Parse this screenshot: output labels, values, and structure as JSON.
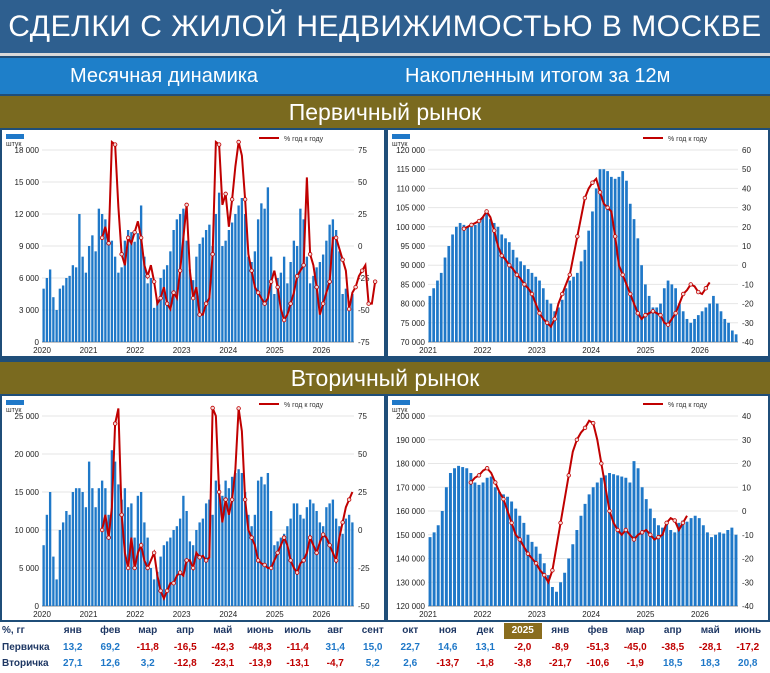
{
  "header": {
    "title": "СДЕЛКИ С ЖИЛОЙ НЕДВИЖИМОСТЬЮ В МОСКВЕ",
    "left_caption": "Месячная динамика",
    "right_caption": "Накопленным итогом за 12м"
  },
  "sections": {
    "primary": "Первичный рынок",
    "secondary": "Вторичный рынок"
  },
  "colors": {
    "bar": "#1f78c8",
    "line": "#c00000",
    "marker_fill": "#f2dcdb"
  },
  "chart_data": [
    {
      "id": "primary-monthly",
      "type": "bar+line",
      "legend": {
        "bars": "штук",
        "line": "% год к году"
      },
      "x_labels": [
        "2020",
        "2021",
        "2022",
        "2023",
        "2024",
        "2025",
        "2026"
      ],
      "ylim_left": [
        0,
        18000
      ],
      "yticks_left": [
        "0",
        "3 000",
        "6 000",
        "9 000",
        "12 000",
        "15 000",
        "18 000"
      ],
      "ylim_right": [
        -75,
        100
      ],
      "yticks_right": [
        "-75",
        "-50",
        "-25",
        "0",
        "25",
        "50",
        "75"
      ],
      "bars": [
        5000,
        6000,
        6800,
        4200,
        3000,
        5000,
        5300,
        6000,
        6200,
        7200,
        7000,
        12000,
        8000,
        6500,
        9000,
        10000,
        8500,
        12500,
        12000,
        11500,
        10000,
        9500,
        8000,
        6500,
        7000,
        9500,
        10500,
        10300,
        9400,
        10200,
        12800,
        8000,
        5500,
        6000,
        3200,
        4000,
        6000,
        6800,
        7200,
        8500,
        10500,
        11500,
        12000,
        12500,
        9500,
        6800,
        5800,
        8000,
        9200,
        9800,
        10500,
        11000,
        9000,
        12000,
        14000,
        9000,
        9500,
        10500,
        11200,
        12000,
        12800,
        13500,
        12000,
        8000,
        7500,
        8500,
        11500,
        13000,
        12500,
        14500,
        8000,
        4500,
        6000,
        6500,
        8000,
        5500,
        7500,
        9500,
        9000,
        12500,
        11500,
        8000,
        5500,
        6200,
        7000,
        7500,
        8200,
        9500,
        11000,
        11500,
        10500,
        8500,
        4500,
        5000,
        3800,
        4500
      ],
      "line": [
        null,
        null,
        null,
        null,
        null,
        null,
        null,
        null,
        null,
        null,
        null,
        null,
        null,
        null,
        null,
        null,
        null,
        null,
        20,
        30,
        15,
        120,
        105,
        48,
        5,
        -5,
        20,
        15,
        25,
        35,
        20,
        -5,
        -15,
        -5,
        -20,
        -40,
        -35,
        -25,
        -40,
        -45,
        -30,
        -35,
        -10,
        20,
        50,
        -10,
        -35,
        -25,
        -50,
        -50,
        -40,
        -35,
        5,
        125,
        105,
        50,
        60,
        30,
        55,
        85,
        120,
        95,
        55,
        5,
        -10,
        -25,
        -30,
        -35,
        -40,
        -35,
        -20,
        -10,
        -25,
        -45,
        -55,
        -50,
        -40,
        -30,
        -15,
        -10,
        -5,
        75,
        5,
        -5,
        -25,
        -50,
        -40,
        -30,
        -20,
        20,
        20,
        10,
        0,
        -10,
        -45,
        -30,
        -25,
        -15,
        -10,
        -5,
        -40,
        -40,
        -20
      ]
    },
    {
      "id": "primary-cumulative",
      "type": "bar+line",
      "legend": {
        "bars": "штук",
        "line": "% год к году"
      },
      "x_labels": [
        "2021",
        "2022",
        "2023",
        "2024",
        "2025",
        "2026"
      ],
      "ylim_left": [
        70000,
        120000
      ],
      "yticks_left": [
        "70 000",
        "75 000",
        "80 000",
        "85 000",
        "90 000",
        "95 000",
        "100 000",
        "105 000",
        "110 000",
        "115 000",
        "120 000"
      ],
      "ylim_right": [
        -40,
        60
      ],
      "yticks_right": [
        "-40",
        "-30",
        "-20",
        "-10",
        "0",
        "10",
        "20",
        "30",
        "40",
        "50",
        "60"
      ],
      "bars": [
        82000,
        84000,
        86000,
        88000,
        92000,
        95000,
        98000,
        100000,
        101000,
        100500,
        100000,
        100000,
        100500,
        101500,
        102500,
        104000,
        102000,
        101000,
        100000,
        98000,
        97000,
        96000,
        94000,
        92000,
        91000,
        90000,
        89000,
        88000,
        87000,
        86000,
        84000,
        81000,
        80000,
        78000,
        79000,
        81000,
        84000,
        86000,
        87000,
        88000,
        91000,
        94000,
        99000,
        104000,
        110000,
        115000,
        115000,
        114500,
        113000,
        112500,
        113000,
        114500,
        112000,
        106000,
        102000,
        97000,
        90000,
        85000,
        82000,
        79000,
        79000,
        80000,
        84000,
        86000,
        85000,
        84000,
        80000,
        78000,
        76000,
        75000,
        76000,
        77000,
        78000,
        79000,
        80000,
        82000,
        80000,
        78000,
        76000,
        75000,
        73000,
        72000
      ],
      "line": [
        null,
        null,
        null,
        null,
        null,
        null,
        null,
        null,
        null,
        19,
        20,
        21,
        22,
        23,
        25,
        28,
        25,
        18,
        10,
        5,
        3,
        0,
        -2,
        -5,
        -7,
        -10,
        -12,
        -15,
        -20,
        -25,
        -28,
        -30,
        -32,
        -28,
        -20,
        -15,
        -10,
        -5,
        5,
        15,
        25,
        35,
        40,
        43,
        45,
        38,
        32,
        30,
        28,
        15,
        0,
        -5,
        -10,
        -15,
        -20,
        -25,
        -28,
        -26,
        -25,
        -24,
        -25,
        -26,
        -30,
        -31,
        -28,
        -25,
        -20,
        -15,
        -13,
        -10,
        -11,
        -14,
        -15,
        -12,
        -9
      ]
    },
    {
      "id": "secondary-monthly",
      "type": "bar+line",
      "legend": {
        "bars": "штук",
        "line": "% год к году"
      },
      "x_labels": [
        "2020",
        "2021",
        "2022",
        "2023",
        "2024",
        "2025",
        "2026"
      ],
      "ylim_left": [
        0,
        25000
      ],
      "yticks_left": [
        "0",
        "5 000",
        "10 000",
        "15 000",
        "20 000",
        "25 000"
      ],
      "ylim_right": [
        -50,
        75
      ],
      "yticks_right": [
        "-50",
        "-25",
        "0",
        "25",
        "50",
        "75"
      ],
      "bars": [
        8000,
        12000,
        15000,
        6500,
        3500,
        10000,
        11000,
        12500,
        12000,
        15000,
        15500,
        15500,
        15000,
        13000,
        19000,
        15500,
        13000,
        15500,
        16500,
        15500,
        12000,
        20500,
        19000,
        16000,
        14000,
        15500,
        13000,
        13500,
        9000,
        14500,
        15000,
        11000,
        9000,
        5000,
        3500,
        4500,
        6500,
        8000,
        8500,
        9000,
        10000,
        10500,
        11500,
        14500,
        12500,
        8500,
        8000,
        10000,
        11000,
        11500,
        13500,
        14000,
        12000,
        16500,
        16000,
        14500,
        16500,
        15500,
        17000,
        17500,
        18000,
        17500,
        15000,
        12000,
        10500,
        12000,
        16500,
        17000,
        16000,
        17500,
        12500,
        8000,
        8500,
        9000,
        9500,
        10500,
        11500,
        13500,
        13500,
        12000,
        11500,
        13000,
        14000,
        13500,
        12500,
        11000,
        10500,
        13000,
        13500,
        14000,
        11500,
        10500,
        9500,
        11500,
        12000,
        11000
      ],
      "line": [
        null,
        null,
        null,
        null,
        null,
        null,
        null,
        null,
        null,
        null,
        null,
        null,
        null,
        null,
        null,
        null,
        null,
        null,
        0,
        10,
        -5,
        15,
        70,
        80,
        10,
        -15,
        -25,
        -5,
        -25,
        -15,
        -10,
        -20,
        -25,
        -20,
        -15,
        -30,
        -40,
        -45,
        -40,
        -35,
        -35,
        -30,
        -28,
        -30,
        -20,
        -20,
        -25,
        -15,
        -18,
        -17,
        -20,
        -18,
        120,
        75,
        25,
        5,
        20,
        10,
        20,
        40,
        80,
        65,
        20,
        0,
        -5,
        -10,
        -20,
        -22,
        -23,
        -25,
        -25,
        -20,
        -15,
        -10,
        -5,
        -10,
        -20,
        -25,
        -28,
        -22,
        -20,
        -15,
        -5,
        -10,
        -15,
        -8,
        -3,
        -5,
        -10,
        -15,
        -20,
        -5,
        5,
        15,
        20,
        25
      ]
    },
    {
      "id": "secondary-cumulative",
      "type": "bar+line",
      "legend": {
        "bars": "штук",
        "line": "% год к году"
      },
      "x_labels": [
        "2021",
        "2022",
        "2023",
        "2024",
        "2025",
        "2026"
      ],
      "ylim_left": [
        120000,
        200000
      ],
      "yticks_left": [
        "120 000",
        "130 000",
        "140 000",
        "150 000",
        "160 000",
        "170 000",
        "180 000",
        "190 000",
        "200 000"
      ],
      "ylim_right": [
        -40,
        40
      ],
      "yticks_right": [
        "-40",
        "-30",
        "-20",
        "-10",
        "0",
        "10",
        "20",
        "30",
        "40"
      ],
      "bars": [
        149000,
        151000,
        154000,
        160000,
        170000,
        176000,
        178000,
        179000,
        178500,
        178000,
        176000,
        172000,
        171000,
        172000,
        174000,
        174500,
        170000,
        168000,
        167000,
        166000,
        164000,
        161000,
        158000,
        155000,
        150000,
        147000,
        145000,
        142000,
        138000,
        133000,
        128000,
        126000,
        130000,
        134000,
        140000,
        146000,
        152000,
        158000,
        163000,
        167000,
        170000,
        172000,
        174000,
        175000,
        176000,
        175500,
        175000,
        174500,
        174000,
        172000,
        181000,
        178000,
        170000,
        165000,
        161000,
        157000,
        154000,
        153000,
        155000,
        152000,
        151000,
        155000,
        156000,
        155500,
        157000,
        158000,
        157000,
        154000,
        151000,
        149000,
        150000,
        151000,
        150500,
        152000,
        153000,
        150000
      ],
      "line": [
        null,
        null,
        null,
        null,
        null,
        null,
        null,
        null,
        null,
        null,
        12,
        14,
        15,
        17,
        18,
        16,
        12,
        8,
        5,
        0,
        -5,
        -10,
        -12,
        -15,
        -18,
        -20,
        -22,
        -25,
        -27,
        -30,
        -25,
        -15,
        -5,
        5,
        15,
        25,
        30,
        33,
        35,
        38,
        37,
        30,
        20,
        10,
        0,
        -5,
        -8,
        -10,
        -8,
        -10,
        -12,
        -10,
        -9,
        -8,
        -10,
        -12,
        -11,
        -10,
        -5,
        -3,
        -4,
        -8,
        -5,
        -2
      ]
    }
  ],
  "table": {
    "headers": [
      "%, гг",
      "янв",
      "фев",
      "мар",
      "апр",
      "май",
      "июнь",
      "июль",
      "авг",
      "сент",
      "окт",
      "ноя",
      "дек",
      "2025",
      "янв",
      "фев",
      "мар",
      "апр",
      "май",
      "июнь"
    ],
    "rows": [
      {
        "label": "Первичка",
        "values": [
          "13,2",
          "69,2",
          "-11,8",
          "-16,5",
          "-42,3",
          "-48,3",
          "-11,4",
          "31,4",
          "15,0",
          "22,7",
          "14,6",
          "13,1",
          "-2,0",
          "-8,9",
          "-51,3",
          "-45,0",
          "-38,5",
          "-28,1",
          "-17,2"
        ]
      },
      {
        "label": "Вторичка",
        "values": [
          "27,1",
          "12,6",
          "3,2",
          "-12,8",
          "-23,1",
          "-13,9",
          "-13,1",
          "-4,7",
          "5,2",
          "2,6",
          "-13,7",
          "-1,8",
          "-3,8",
          "-21,7",
          "-10,6",
          "-1,9",
          "18,5",
          "18,3",
          "20,8"
        ]
      }
    ]
  }
}
